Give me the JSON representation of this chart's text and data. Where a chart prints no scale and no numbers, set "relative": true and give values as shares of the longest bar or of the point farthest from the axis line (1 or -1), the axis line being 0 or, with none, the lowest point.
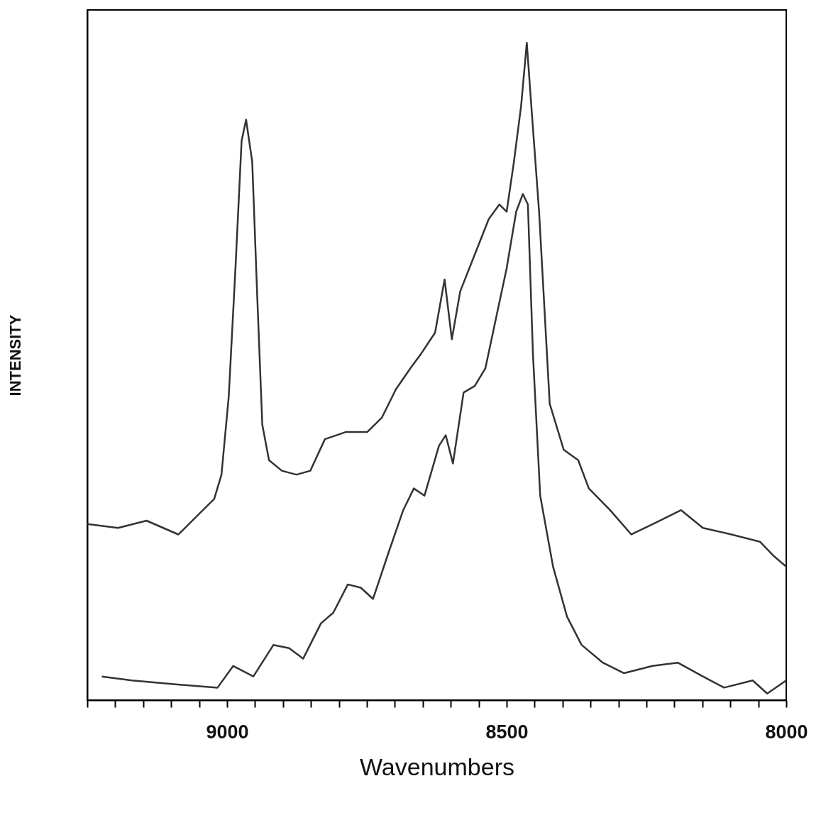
{
  "chart_data": {
    "type": "line",
    "relative": true,
    "xlabel": "Wavenumbers",
    "ylabel": "INTENSITY",
    "xlim": [
      9250,
      8000
    ],
    "xticks": [
      {
        "value": 9250,
        "label": null
      },
      {
        "value": 9200,
        "label": null
      },
      {
        "value": 9150,
        "label": null
      },
      {
        "value": 9100,
        "label": null
      },
      {
        "value": 9050,
        "label": null
      },
      9000,
      {
        "value": 8950,
        "label": null
      },
      {
        "value": 8900,
        "label": null
      },
      {
        "value": 8850,
        "label": null
      },
      {
        "value": 8800,
        "label": null
      },
      {
        "value": 8750,
        "label": null
      },
      {
        "value": 8700,
        "label": null
      },
      {
        "value": 8650,
        "label": null
      },
      {
        "value": 8600,
        "label": null
      },
      {
        "value": 8550,
        "label": null
      },
      8500,
      {
        "value": 8450,
        "label": null
      },
      {
        "value": 8400,
        "label": null
      },
      {
        "value": 8350,
        "label": null
      },
      {
        "value": 8300,
        "label": null
      },
      {
        "value": 8250,
        "label": null
      },
      {
        "value": 8200,
        "label": null
      },
      {
        "value": 8150,
        "label": null
      },
      {
        "value": 8100,
        "label": null
      },
      {
        "value": 8050,
        "label": null
      },
      8000
    ],
    "grid": false,
    "marker": "none",
    "line_style": "solid",
    "series": [
      {
        "color": "#333333",
        "x": [
          9250,
          9195,
          9144,
          9087,
          9055,
          9023,
          9010,
          8997,
          8985,
          8974,
          8966,
          8955,
          8946,
          8937,
          8925,
          8902,
          8876,
          8851,
          8825,
          8787,
          8749,
          8723,
          8698,
          8672,
          8653,
          8628,
          8611,
          8598,
          8583,
          8557,
          8532,
          8513,
          8500,
          8487,
          8474,
          8464,
          8455,
          8442,
          8423,
          8398,
          8372,
          8353,
          8315,
          8277,
          8238,
          8188,
          8149,
          8098,
          8047,
          8022,
          8000
        ],
        "values": [
          0.268,
          0.262,
          0.273,
          0.252,
          0.279,
          0.306,
          0.343,
          0.462,
          0.657,
          0.851,
          0.883,
          0.819,
          0.613,
          0.419,
          0.365,
          0.349,
          0.343,
          0.349,
          0.397,
          0.408,
          0.408,
          0.43,
          0.473,
          0.505,
          0.527,
          0.559,
          0.64,
          0.549,
          0.622,
          0.678,
          0.732,
          0.754,
          0.743,
          0.819,
          0.905,
          1,
          0.894,
          0.743,
          0.451,
          0.381,
          0.365,
          0.322,
          0.289,
          0.252,
          0.268,
          0.289,
          0.262,
          0.252,
          0.241,
          0.219,
          0.203
        ]
      },
      {
        "color": "#333333",
        "x": [
          9224,
          9170,
          9106,
          9017,
          8989,
          8953,
          8917,
          8889,
          8864,
          8832,
          8810,
          8784,
          8761,
          8739,
          8711,
          8685,
          8666,
          8647,
          8621,
          8609,
          8596,
          8577,
          8557,
          8538,
          8519,
          8500,
          8483,
          8471,
          8462,
          8453,
          8440,
          8417,
          8392,
          8366,
          8328,
          8290,
          8239,
          8194,
          8149,
          8111,
          8060,
          8034,
          8000
        ],
        "values": [
          0.036,
          0.03,
          0.025,
          0.019,
          0.052,
          0.036,
          0.084,
          0.079,
          0.063,
          0.117,
          0.133,
          0.176,
          0.171,
          0.154,
          0.225,
          0.289,
          0.322,
          0.311,
          0.387,
          0.403,
          0.36,
          0.468,
          0.478,
          0.505,
          0.581,
          0.657,
          0.743,
          0.77,
          0.754,
          0.527,
          0.311,
          0.203,
          0.127,
          0.084,
          0.057,
          0.041,
          0.052,
          0.057,
          0.036,
          0.019,
          0.03,
          0.01,
          0.03
        ]
      }
    ]
  }
}
